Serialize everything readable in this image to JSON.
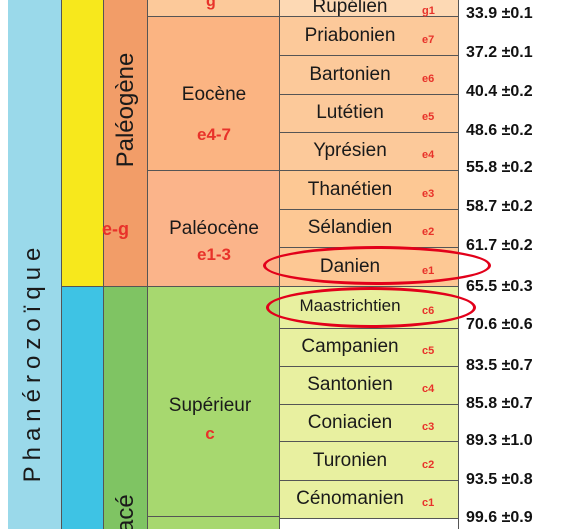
{
  "eon": {
    "label": "Phanérozoïque"
  },
  "eras": [
    {
      "label": "e-g"
    },
    {
      "label": ""
    }
  ],
  "periods": [
    {
      "label": "Paléogène"
    },
    {
      "label": "étacé"
    }
  ],
  "epochs": [
    {
      "name": "",
      "code": "g"
    },
    {
      "name": "Eocène",
      "code": "e4-7"
    },
    {
      "name": "Paléocène",
      "code": "e1-3"
    },
    {
      "name": "Supérieur",
      "code": "c"
    }
  ],
  "stages": [
    {
      "name": "Rupélien",
      "code": "g1"
    },
    {
      "name": "Priabonien",
      "code": "e7"
    },
    {
      "name": "Bartonien",
      "code": "e6"
    },
    {
      "name": "Lutétien",
      "code": "e5"
    },
    {
      "name": "Yprésien",
      "code": "e4"
    },
    {
      "name": "Thanétien",
      "code": "e3"
    },
    {
      "name": "Sélandien",
      "code": "e2"
    },
    {
      "name": "Danien",
      "code": "e1"
    },
    {
      "name": "Maastrichtien",
      "code": "c6"
    },
    {
      "name": "Campanien",
      "code": "c5"
    },
    {
      "name": "Santonien",
      "code": "c4"
    },
    {
      "name": "Coniacien",
      "code": "c3"
    },
    {
      "name": "Turonien",
      "code": "c2"
    },
    {
      "name": "Cénomanien",
      "code": "c1"
    }
  ],
  "ages": [
    "33.9 ±0.1",
    "37.2 ±0.1",
    "40.4 ±0.2",
    "48.6 ±0.2",
    "55.8 ±0.2",
    "58.7 ±0.2",
    "61.7 ±0.2",
    "65.5 ±0.3",
    "70.6 ±0.6",
    "83.5 ±0.7",
    "85.8 ±0.7",
    "89.3 ±1.0",
    "93.5 ±0.8",
    "99.6 ±0.9"
  ],
  "highlighted_stages": [
    "Danien",
    "Maastrichtien"
  ],
  "colors": {
    "eon": "#9ad9ea",
    "era_cenozoic": "#f7e81c",
    "era_mesozoic": "#3ec3e4",
    "period_paleogene": "#f29d68",
    "period_cretaceous": "#7fc463",
    "epoch_oligocene": "#fcc99a",
    "epoch_eocene": "#fbb482",
    "epoch_paleocene": "#fbb48a",
    "epoch_upper_cretaceous": "#a7d86f",
    "stage_oligocene": "#fdd9b4",
    "stage_eocene": "#fcc99a",
    "stage_paleocene": "#fdc894",
    "stage_cretaceous": "#e8f0a0",
    "highlight_ring": "#e2001a",
    "code_text": "#e8322a"
  }
}
